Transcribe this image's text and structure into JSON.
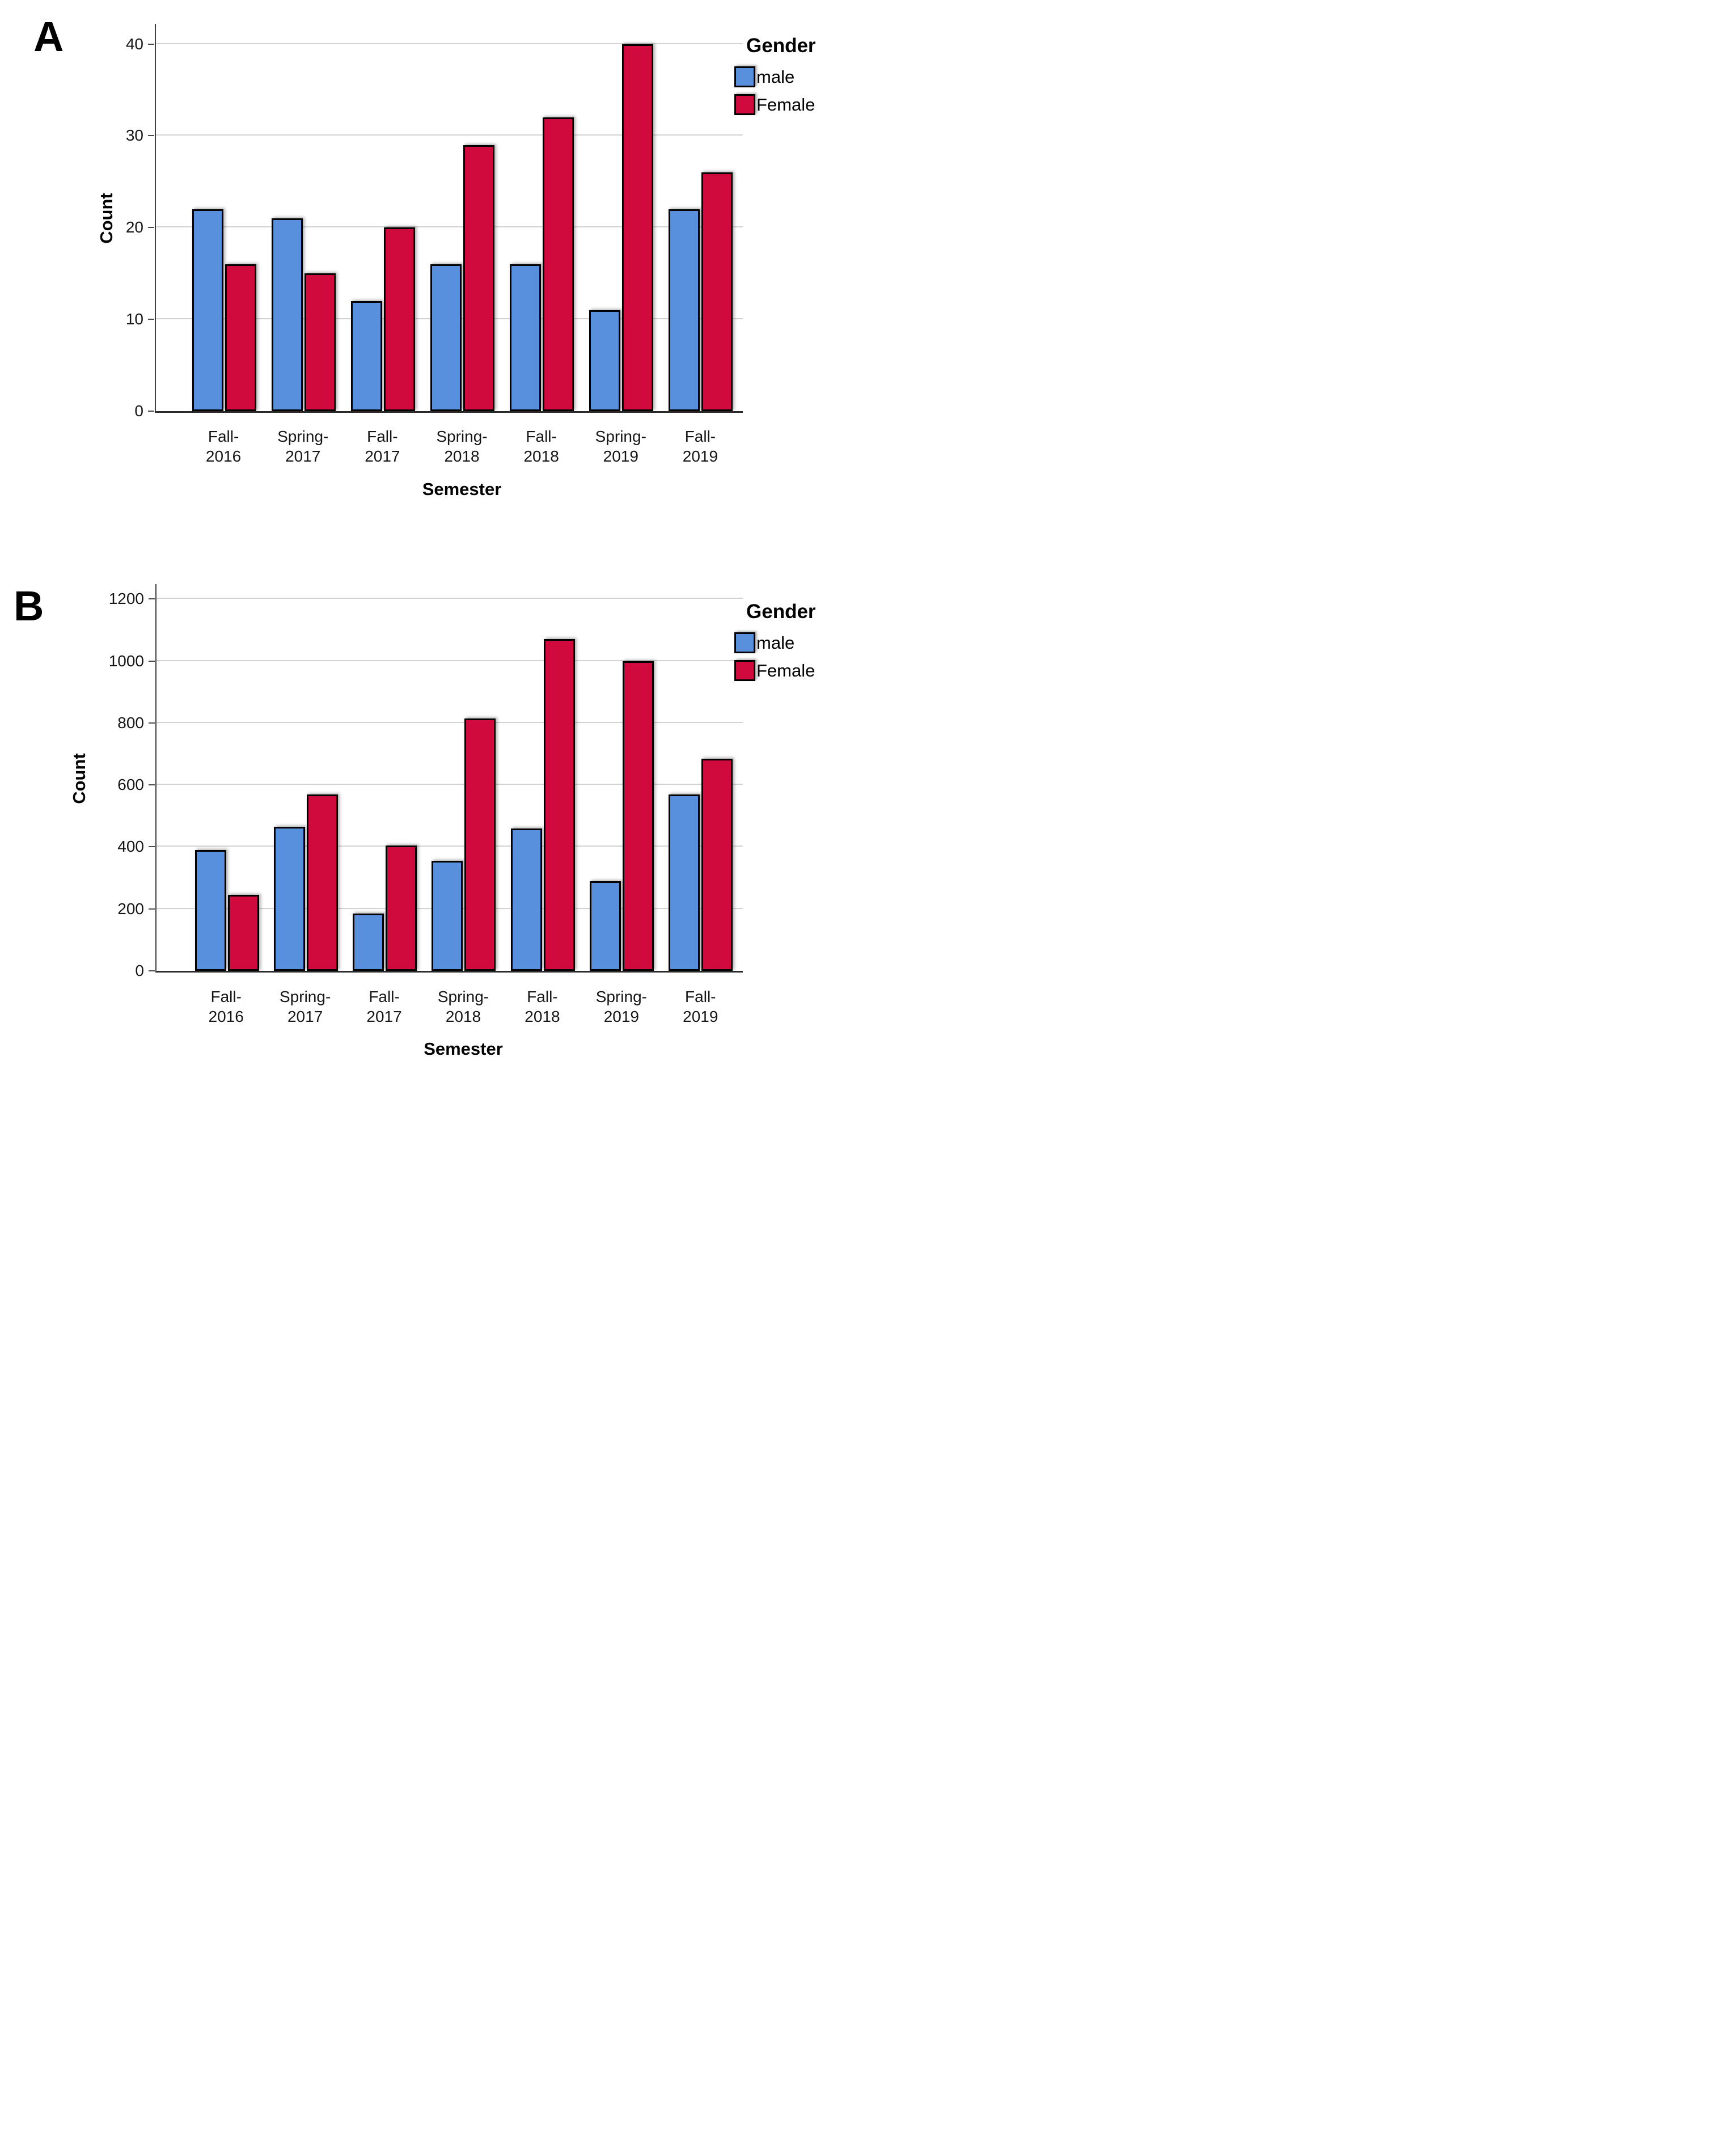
{
  "figure_background": "#ffffff",
  "chart_data": [
    {
      "type": "bar",
      "panel_label": "A",
      "title": "",
      "xlabel": "Semester",
      "ylabel": "Count",
      "ylim": [
        0,
        40
      ],
      "yticks": [
        0,
        10,
        20,
        30,
        40
      ],
      "grid": "horizontal",
      "legend_position": "top-right",
      "categories": [
        "Fall-2016",
        "Spring-2017",
        "Fall-2017",
        "Spring-2018",
        "Fall-2018",
        "Spring-2019",
        "Fall-2019"
      ],
      "category_label_lines": [
        [
          "Fall-",
          "2016"
        ],
        [
          "Spring-",
          "2017"
        ],
        [
          "Fall-",
          "2017"
        ],
        [
          "Spring-",
          "2018"
        ],
        [
          "Fall-",
          "2018"
        ],
        [
          "Spring-",
          "2019"
        ],
        [
          "Fall-",
          "2019"
        ]
      ],
      "legend": {
        "title": "Gender",
        "items": [
          {
            "label": "male",
            "color": "#5890DE"
          },
          {
            "label": "Female",
            "color": "#D10A3E"
          }
        ]
      },
      "series": [
        {
          "name": "male",
          "color": "#5890DE",
          "values": [
            22,
            21,
            12,
            16,
            16,
            11,
            22
          ]
        },
        {
          "name": "Female",
          "color": "#D10A3E",
          "values": [
            16,
            15,
            20,
            29,
            32,
            40,
            26
          ]
        }
      ]
    },
    {
      "type": "bar",
      "panel_label": "B",
      "title": "",
      "xlabel": "Semester",
      "ylabel": "Count",
      "ylim": [
        0,
        1200
      ],
      "yticks": [
        0,
        200,
        400,
        600,
        800,
        1000,
        1200
      ],
      "grid": "horizontal",
      "legend_position": "top-right",
      "categories": [
        "Fall-2016",
        "Spring-2017",
        "Fall-2017",
        "Spring-2018",
        "Fall-2018",
        "Spring-2019",
        "Fall-2019"
      ],
      "category_label_lines": [
        [
          "Fall-",
          "2016"
        ],
        [
          "Spring-",
          "2017"
        ],
        [
          "Fall-",
          "2017"
        ],
        [
          "Spring-",
          "2018"
        ],
        [
          "Fall-",
          "2018"
        ],
        [
          "Spring-",
          "2019"
        ],
        [
          "Fall-",
          "2019"
        ]
      ],
      "legend": {
        "title": "Gender",
        "items": [
          {
            "label": "male",
            "color": "#5890DE"
          },
          {
            "label": "Female",
            "color": "#D10A3E"
          }
        ]
      },
      "series": [
        {
          "name": "male",
          "color": "#5890DE",
          "values": [
            390,
            465,
            185,
            355,
            460,
            290,
            570
          ]
        },
        {
          "name": "Female",
          "color": "#D10A3E",
          "values": [
            245,
            570,
            405,
            815,
            1070,
            1000,
            685
          ]
        }
      ]
    }
  ]
}
